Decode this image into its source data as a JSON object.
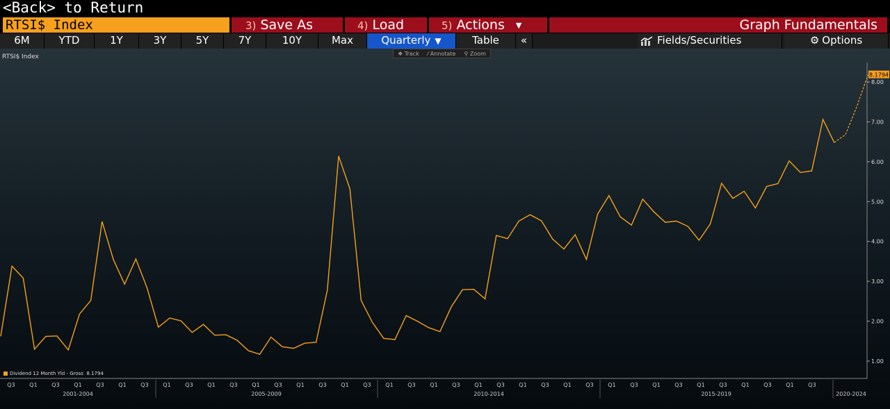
{
  "cmdline": "<Back> to Return",
  "toolbar": {
    "security": "RTSI$ Index",
    "save_as": {
      "num": "3)",
      "label": "Save As"
    },
    "load": {
      "num": "4)",
      "label": "Load"
    },
    "actions": {
      "num": "5)",
      "label": "Actions"
    },
    "graph_fundamentals": "Graph Fundamentals"
  },
  "tabs": [
    "6M",
    "YTD",
    "1Y",
    "3Y",
    "5Y",
    "7Y",
    "10Y",
    "Max",
    "Quarterly",
    "Table",
    "«"
  ],
  "active_tab": "Quarterly",
  "fields_label": "Fields/Securities",
  "options_label": "Options",
  "chart_tools": [
    "Track",
    "Annotate",
    "Zoom"
  ],
  "colors": {
    "accent": "#f7a01d",
    "action_red": "#9c0e1c",
    "active_tab": "#1556c9"
  },
  "chart_data": {
    "type": "line",
    "title": "RTSI$ Index",
    "ylim": [
      0.75,
      8.6
    ],
    "yticks": [
      "1.00",
      "2.00",
      "3.00",
      "4.00",
      "5.00",
      "6.00",
      "7.00",
      "8.00"
    ],
    "last_value_label": "8.1794",
    "x_quarter_labels": [
      "Q3",
      "Q1",
      "Q3",
      "Q1",
      "Q3",
      "Q1",
      "Q3",
      "Q1",
      "Q3",
      "Q1",
      "Q3",
      "Q1",
      "Q3",
      "Q1",
      "Q3",
      "Q1",
      "Q3",
      "Q1",
      "Q3",
      "Q1",
      "Q3",
      "Q1",
      "Q3",
      "Q1",
      "Q3",
      "Q1",
      "Q3",
      "Q1",
      "Q3",
      "Q1",
      "Q3",
      "Q1",
      "Q3",
      "Q1",
      "Q3",
      "Q1",
      "Q3"
    ],
    "x_period_labels": [
      "2001-2004",
      "2005-2009",
      "2010-2014",
      "2015-2019",
      "2020-2024"
    ],
    "series": [
      {
        "name": "Dividend 12 Month Yld - Gross",
        "last": "8.1794",
        "values": [
          1.62,
          3.38,
          3.08,
          1.3,
          1.62,
          1.63,
          1.28,
          2.18,
          2.52,
          4.5,
          3.55,
          2.93,
          3.56,
          2.83,
          1.85,
          2.08,
          2.01,
          1.72,
          1.92,
          1.65,
          1.66,
          1.52,
          1.26,
          1.17,
          1.6,
          1.36,
          1.32,
          1.45,
          1.47,
          2.78,
          6.14,
          5.32,
          2.52,
          1.97,
          1.57,
          1.54,
          2.14,
          2.0,
          1.84,
          1.74,
          2.36,
          2.79,
          2.8,
          2.56,
          4.15,
          4.07,
          4.51,
          4.67,
          4.52,
          4.06,
          3.81,
          4.17,
          3.55,
          4.69,
          5.15,
          4.62,
          4.41,
          5.06,
          4.74,
          4.48,
          4.51,
          4.38,
          4.03,
          4.44,
          5.46,
          5.08,
          5.26,
          4.84,
          5.38,
          5.45,
          6.02,
          5.73,
          5.77,
          7.06,
          6.48
        ],
        "projection": [
          6.48,
          6.68,
          7.38,
          8.18
        ]
      }
    ]
  }
}
